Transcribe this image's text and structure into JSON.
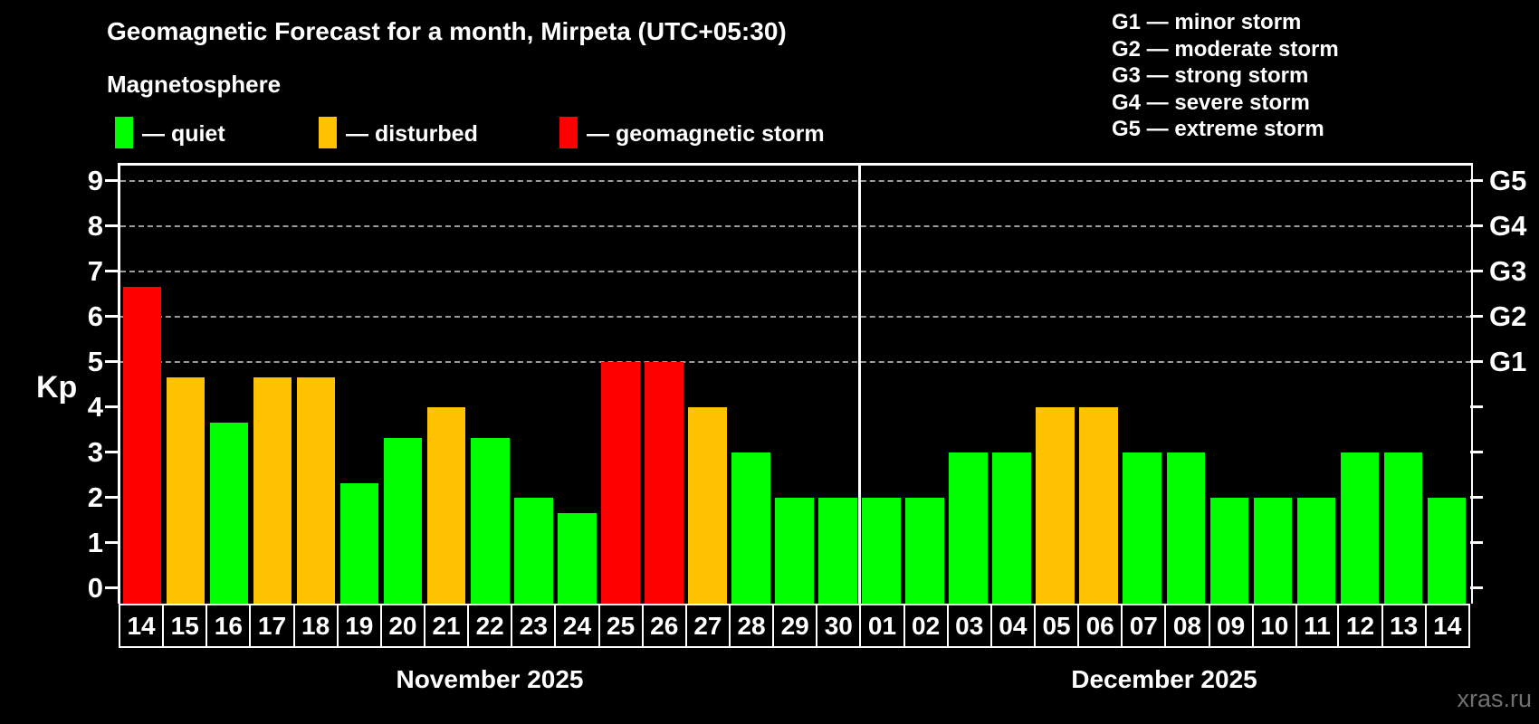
{
  "title": "Geomagnetic Forecast for a month, Mirpeta (UTC+05:30)",
  "subtitle": "Magnetosphere",
  "status_legend": [
    {
      "label": "— quiet",
      "status": "quiet",
      "color": "#00ff00"
    },
    {
      "label": "— disturbed",
      "status": "disturbed",
      "color": "#ffc200"
    },
    {
      "label": "— geomagnetic storm",
      "status": "storm",
      "color": "#ff0000"
    }
  ],
  "g_scale_legend": [
    "G1 — minor storm",
    "G2 — moderate storm",
    "G3 — strong storm",
    "G4 — severe storm",
    "G5 — extreme storm"
  ],
  "axes": {
    "y_label": "Kp",
    "y_ticks": [
      0,
      1,
      2,
      3,
      4,
      5,
      6,
      7,
      8,
      9
    ],
    "right_labels": [
      {
        "text": "G1",
        "kp": 5
      },
      {
        "text": "G2",
        "kp": 6
      },
      {
        "text": "G3",
        "kp": 7
      },
      {
        "text": "G4",
        "kp": 8
      },
      {
        "text": "G5",
        "kp": 9
      }
    ],
    "gridline_kp": [
      5,
      6,
      7,
      8,
      9
    ]
  },
  "watermark": "xras.ru",
  "chart_data": {
    "type": "bar",
    "title": "Geomagnetic Forecast for a month, Mirpeta (UTC+05:30)",
    "subtitle": "Magnetosphere",
    "xlabel": "",
    "ylabel": "Kp",
    "ylim": [
      0,
      9
    ],
    "grid": "horizontal dashed lines at Kp 5,6,7,8,9 (G1–G5 levels)",
    "legend_position": "top-left statuses, top-right G-scale",
    "months": [
      {
        "name": "November 2025",
        "day_count": 17
      },
      {
        "name": "December 2025",
        "day_count": 14
      }
    ],
    "categories": [
      "14",
      "15",
      "16",
      "17",
      "18",
      "19",
      "20",
      "21",
      "22",
      "23",
      "24",
      "25",
      "26",
      "27",
      "28",
      "29",
      "30",
      "01",
      "02",
      "03",
      "04",
      "05",
      "06",
      "07",
      "08",
      "09",
      "10",
      "11",
      "12",
      "13",
      "14"
    ],
    "values": [
      6.67,
      4.67,
      3.67,
      4.67,
      4.67,
      2.33,
      3.33,
      4,
      3.33,
      2,
      1.67,
      5,
      5,
      4,
      3,
      2,
      2,
      2,
      2,
      3,
      3,
      4,
      4,
      3,
      3,
      2,
      2,
      2,
      3,
      3,
      2
    ],
    "statuses": [
      "storm",
      "disturbed",
      "quiet",
      "disturbed",
      "disturbed",
      "quiet",
      "quiet",
      "disturbed",
      "quiet",
      "quiet",
      "quiet",
      "storm",
      "storm",
      "disturbed",
      "quiet",
      "quiet",
      "quiet",
      "quiet",
      "quiet",
      "quiet",
      "quiet",
      "disturbed",
      "disturbed",
      "quiet",
      "quiet",
      "quiet",
      "quiet",
      "quiet",
      "quiet",
      "quiet",
      "quiet"
    ],
    "colors": {
      "quiet": "#00ff00",
      "disturbed": "#ffc200",
      "storm": "#ff0000"
    }
  }
}
